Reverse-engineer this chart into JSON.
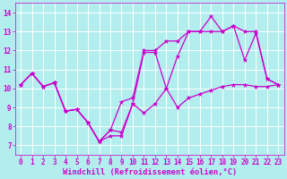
{
  "xlabel": "Windchill (Refroidissement éolien,°C)",
  "background_color": "#b2eeee",
  "line_color": "#cc00cc",
  "grid_color": "#ffffff",
  "xlim": [
    -0.5,
    23.5
  ],
  "ylim": [
    6.5,
    14.5
  ],
  "xticks": [
    0,
    1,
    2,
    3,
    4,
    5,
    6,
    7,
    8,
    9,
    10,
    11,
    12,
    13,
    14,
    15,
    16,
    17,
    18,
    19,
    20,
    21,
    22,
    23
  ],
  "yticks": [
    7,
    8,
    9,
    10,
    11,
    12,
    13,
    14
  ],
  "series1_x": [
    0,
    1,
    2,
    3,
    4,
    5,
    6,
    7,
    8,
    9,
    10,
    11,
    12,
    13,
    14,
    15,
    16,
    17,
    18,
    19,
    20,
    21,
    22,
    23
  ],
  "series1_y": [
    10.2,
    10.8,
    10.1,
    10.3,
    8.8,
    8.9,
    8.2,
    7.2,
    7.5,
    7.5,
    9.2,
    8.7,
    9.2,
    10.0,
    9.0,
    9.5,
    9.7,
    9.9,
    10.1,
    10.2,
    10.2,
    10.1,
    10.1,
    10.2
  ],
  "series2_x": [
    0,
    1,
    2,
    3,
    4,
    5,
    6,
    7,
    8,
    9,
    10,
    11,
    12,
    13,
    14,
    15,
    16,
    17,
    18,
    19,
    20,
    21,
    22,
    23
  ],
  "series2_y": [
    10.2,
    10.8,
    10.1,
    10.3,
    8.8,
    8.9,
    8.2,
    7.2,
    7.8,
    7.7,
    9.2,
    11.9,
    11.9,
    10.0,
    11.7,
    13.0,
    13.0,
    13.8,
    13.0,
    13.3,
    11.5,
    12.9,
    10.5,
    10.2
  ],
  "series3_x": [
    0,
    1,
    2,
    3,
    4,
    5,
    6,
    7,
    8,
    9,
    10,
    11,
    12,
    13,
    14,
    15,
    16,
    17,
    18,
    19,
    20,
    21,
    22,
    23
  ],
  "series3_y": [
    10.2,
    10.8,
    10.1,
    10.3,
    8.8,
    8.9,
    8.2,
    7.2,
    7.8,
    9.3,
    9.5,
    12.0,
    12.0,
    12.5,
    12.5,
    13.0,
    13.0,
    13.0,
    13.0,
    13.3,
    13.0,
    13.0,
    10.5,
    10.2
  ],
  "marker_size": 3.5,
  "line_width": 0.9,
  "tick_fontsize": 5.5,
  "label_fontsize": 6.2
}
